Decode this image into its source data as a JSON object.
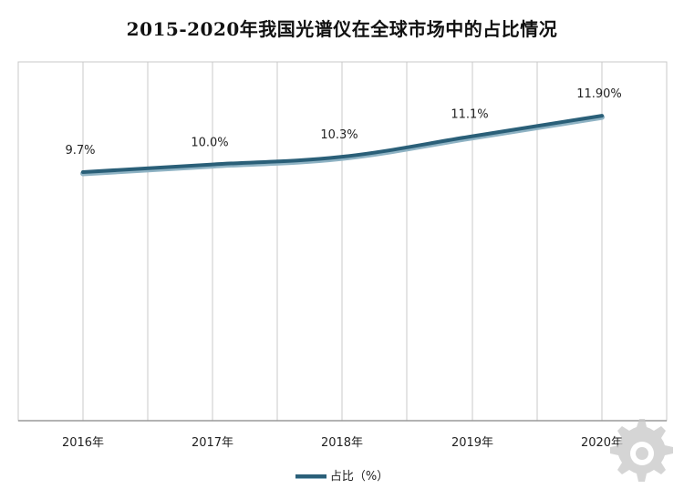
{
  "chart_data": {
    "type": "line",
    "title": "2015-2020年我国光谱仪在全球市场中的占比情况",
    "categories": [
      "2016年",
      "2017年",
      "2018年",
      "2019年",
      "2020年"
    ],
    "series": [
      {
        "name": "占比（%）",
        "values": [
          9.7,
          10.0,
          10.3,
          11.1,
          11.9
        ],
        "labels": [
          "9.7%",
          "10.0%",
          "10.3%",
          "11.1%",
          "11.90%"
        ]
      }
    ],
    "ylim": [
      0,
      14
    ],
    "grid": "vertical",
    "legend": "bottom-center",
    "colors": {
      "line": "#2a5f78",
      "line_highlight": "#8fb3c4",
      "grid": "#c8c8c8"
    }
  }
}
